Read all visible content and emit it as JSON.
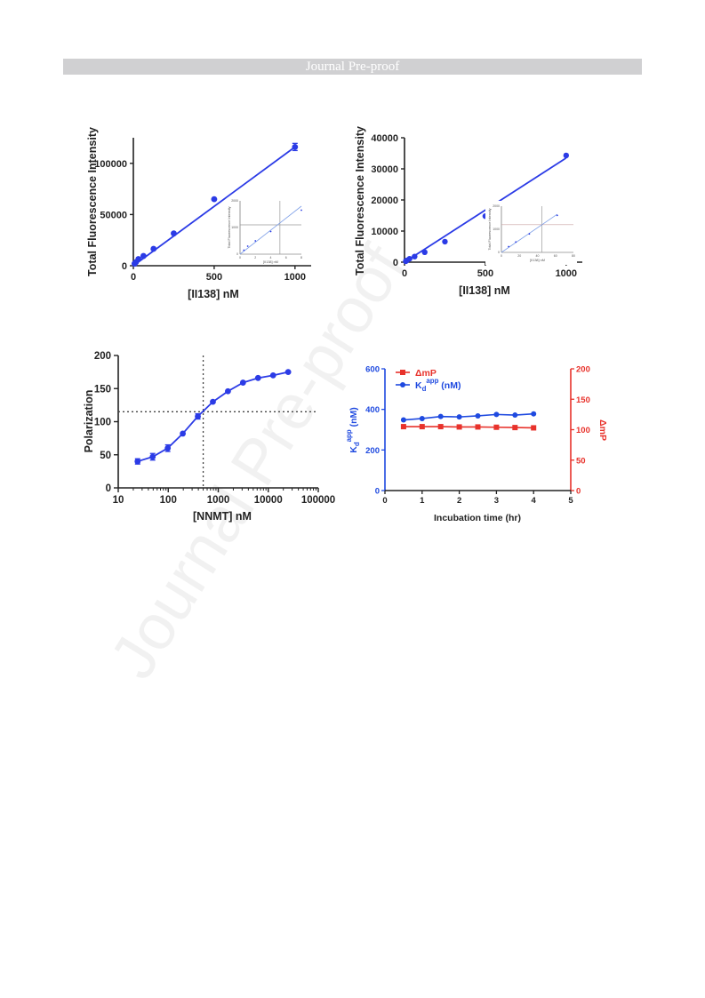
{
  "header": {
    "title": "Journal Pre-proof"
  },
  "watermark": "Journal Pre-proof",
  "chart_data": [
    {
      "type": "scatter",
      "xlabel": "[II138] nM",
      "ylabel": "Total Fluorescence Intensity",
      "xlim": [
        0,
        1100
      ],
      "ylim": [
        0,
        125000
      ],
      "x_ticks": [
        0,
        500,
        1000
      ],
      "y_ticks": [
        0,
        50000,
        100000
      ],
      "colors": {
        "series": "#2b3be6"
      },
      "series": [
        {
          "x": [
            7.8,
            15.6,
            31.3,
            62.5,
            125,
            250,
            500,
            1000
          ],
          "y": [
            2000,
            3500,
            6500,
            9500,
            16500,
            31500,
            65000,
            116000
          ]
        }
      ],
      "fit_line": [
        [
          0,
          0
        ],
        [
          1000,
          116000
        ]
      ],
      "inset": {
        "xlabel": "[II138] nM",
        "ylabel": "Total Fluorescence Intensity",
        "xlim": [
          0,
          8
        ],
        "ylim": [
          0,
          2000
        ],
        "x_ticks": [
          0,
          2,
          4,
          6,
          8
        ],
        "y_ticks": [
          0,
          1000,
          2000
        ],
        "points": {
          "x": [
            0.5,
            1,
            2,
            4,
            8
          ],
          "y": [
            150,
            300,
            500,
            850,
            1650
          ]
        },
        "hline": 1100,
        "vline": 5.2
      }
    },
    {
      "type": "scatter",
      "xlabel": "[II138] nM",
      "ylabel": "Total Fluorescence Intensity",
      "xlim": [
        0,
        1100
      ],
      "ylim": [
        0,
        40000
      ],
      "x_ticks": [
        0,
        500,
        1000
      ],
      "y_ticks": [
        0,
        10000,
        20000,
        30000,
        40000
      ],
      "colors": {
        "series": "#2b3be6"
      },
      "series": [
        {
          "x": [
            7.8,
            15.6,
            31.3,
            62.5,
            125,
            250,
            500,
            1000
          ],
          "y": [
            300,
            600,
            1100,
            1800,
            3200,
            6600,
            14800,
            34300
          ]
        }
      ],
      "fit_line": [
        [
          0,
          0
        ],
        [
          1000,
          33500
        ]
      ],
      "inset": {
        "xlabel": "[II138] nM",
        "ylabel": "Total Fluorescence Intensity",
        "xlim": [
          0,
          80
        ],
        "ylim": [
          0,
          2000
        ],
        "x_ticks": [
          0,
          20,
          40,
          60,
          80
        ],
        "y_ticks": [
          0,
          1000,
          2000
        ],
        "points": {
          "x": [
            8,
            16,
            31,
            62
          ],
          "y": [
            250,
            450,
            800,
            1600
          ]
        },
        "hline": 1200,
        "vline": 45
      }
    },
    {
      "type": "line",
      "xlabel": "[NNMT] nM",
      "ylabel": "Polarization",
      "xscale": "log",
      "xlim": [
        10,
        100000
      ],
      "ylim": [
        0,
        200
      ],
      "x_ticks": [
        10,
        100,
        1000,
        10000,
        100000
      ],
      "y_ticks": [
        0,
        50,
        100,
        150,
        200
      ],
      "colors": {
        "series": "#2b3be6"
      },
      "series": [
        {
          "x": [
            24.4,
            48.8,
            97.7,
            195.3,
            390.6,
            781.3,
            1562.5,
            3125,
            6250,
            12500,
            25000
          ],
          "y": [
            40,
            47,
            60,
            82,
            108,
            130,
            146,
            159,
            166,
            170,
            175
          ],
          "err": [
            4,
            5,
            5,
            2,
            4,
            2,
            2,
            2,
            2,
            2,
            2
          ]
        }
      ],
      "hline": 115,
      "vline": 500
    },
    {
      "type": "line",
      "xlabel": "Incubation time (hr)",
      "ylabel_left": "K_d^app (nM)",
      "ylabel_right": "ΔmP",
      "xlim": [
        0,
        5
      ],
      "ylim_left": [
        0,
        600
      ],
      "ylim_right": [
        0,
        200
      ],
      "x_ticks": [
        0,
        1,
        2,
        3,
        4,
        5
      ],
      "y_ticks_left": [
        0,
        200,
        400,
        600
      ],
      "y_ticks_right": [
        0,
        50,
        100,
        150,
        200
      ],
      "legend_position": "top-left",
      "colors": {
        "left_axis": "#1f4ae0",
        "right_axis": "#e8322b"
      },
      "series": [
        {
          "name": "ΔmP",
          "axis": "right",
          "marker": "square",
          "color": "#e8322b",
          "x": [
            0.5,
            1,
            1.5,
            2,
            2.5,
            3,
            3.5,
            4
          ],
          "y": [
            105,
            105,
            105,
            104.5,
            104.5,
            104,
            103.5,
            103
          ]
        },
        {
          "name": "K_d^app (nM)",
          "axis": "left",
          "marker": "circle",
          "color": "#1f4ae0",
          "x": [
            0.5,
            1,
            1.5,
            2,
            2.5,
            3,
            3.5,
            4
          ],
          "y": [
            348,
            355,
            365,
            363,
            368,
            375,
            372,
            378
          ]
        }
      ]
    }
  ]
}
